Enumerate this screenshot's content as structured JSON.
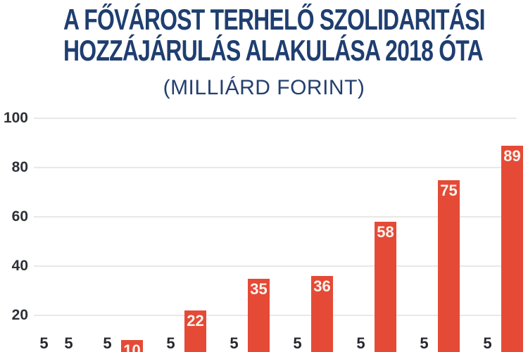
{
  "header": {
    "title_lines": [
      "A FŐVÁROST TERHELŐ SZOLIDARITÁSI",
      "HOZZÁJÁRULÁS ALAKULÁSA 2018 ÓTA"
    ],
    "subtitle": "(MILLIÁRD FORINT)"
  },
  "colors": {
    "title_navy": "#1f3e70",
    "subtitle_navy": "#24406e",
    "bar_red": "#e54a37",
    "bar_navy": "#1f3e72",
    "grid_line": "#e8e8e8",
    "tick_label": "#2e3037",
    "value_label_dark": "#26282e",
    "value_label_light": "#fbf4ee",
    "background": "#ffffff"
  },
  "chart_data": {
    "type": "bar",
    "title": "A FŐVÁROST TERHELŐ SZOLIDARITÁSI HOZZÁJÁRULÁS ALAKULÁSA 2018 ÓTA",
    "subtitle": "(MILLIÁRD FORINT)",
    "unit": "milliárd forint",
    "xlabel": "",
    "ylabel": "",
    "ylim": [
      0,
      100
    ],
    "yticks": [
      20,
      40,
      60,
      80,
      100
    ],
    "grid": true,
    "legend": "none",
    "x_tick_labels_visible": false,
    "group_count": 8,
    "series": [
      {
        "name": "base-contribution",
        "color": "#1f3e72",
        "values": [
          5,
          5,
          5,
          5,
          5,
          5,
          5,
          5
        ]
      },
      {
        "name": "yearly-contribution",
        "color": "#e54a37",
        "values": [
          5,
          10,
          22,
          35,
          36,
          58,
          75,
          89
        ]
      }
    ]
  }
}
